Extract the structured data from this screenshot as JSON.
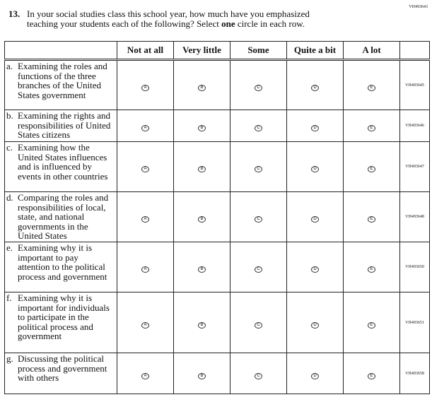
{
  "question_id": "VH493643",
  "question": {
    "number": "13.",
    "line1": "In your social studies class this school year, how much have you emphasized",
    "line2_pre": "teaching your students each of the following? Select ",
    "line2_bold": "one",
    "line2_post": " circle in each row."
  },
  "columns": [
    "Not at all",
    "Very little",
    "Some",
    "Quite a bit",
    "A lot"
  ],
  "bubbles": [
    "A",
    "B",
    "C",
    "D",
    "E"
  ],
  "rows": [
    {
      "letter": "a.",
      "text": "Examining the roles and functions of the three branches of the United States government",
      "id": "VH493645",
      "h": 71
    },
    {
      "letter": "b.",
      "text": "Examining the rights and responsibilities of United States citizens",
      "id": "VH493646",
      "h": 45
    },
    {
      "letter": "c.",
      "text": "Examining how the United States influences and is influenced by events in other countries",
      "id": "VH493647",
      "h": 71
    },
    {
      "letter": "d.",
      "text": "Comparing the roles and responsibilities of local, state, and national governments in the United States",
      "id": "VH493648",
      "h": 71
    },
    {
      "letter": "e.",
      "text": "Examining why it is important to pay attention to the political process and government",
      "id": "VH493650",
      "h": 71
    },
    {
      "letter": "f.",
      "text": "Examining why it is important for individuals to participate in the political process and government",
      "id": "VH493651",
      "h": 86
    },
    {
      "letter": "g.",
      "text": "Discussing the political process and government with others",
      "id": "VH493658",
      "h": 58
    }
  ]
}
